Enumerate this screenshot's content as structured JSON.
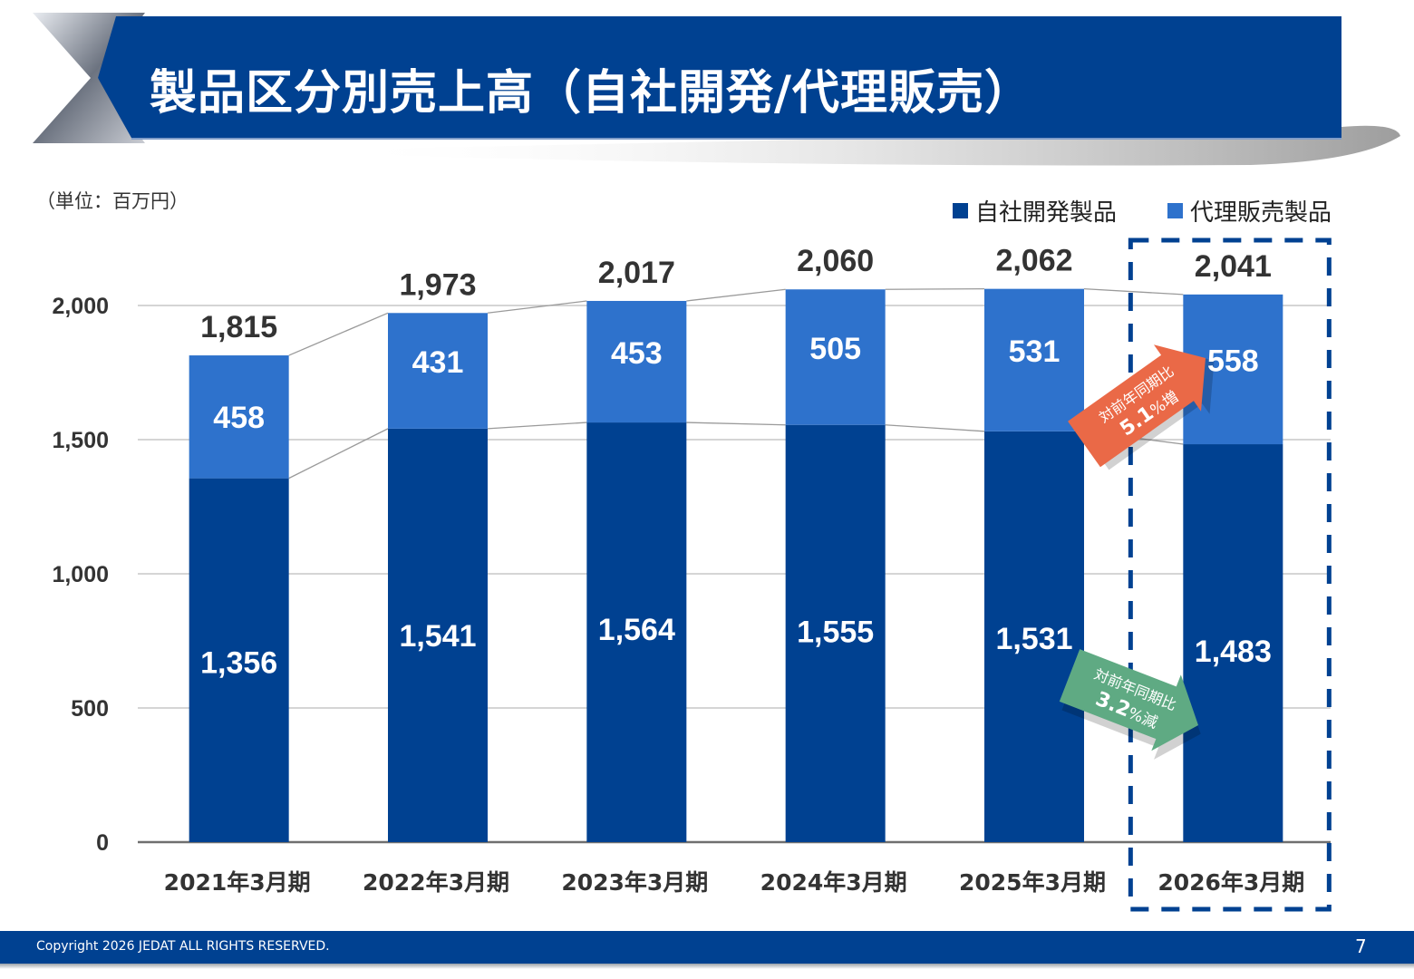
{
  "title": "製品区分別売上高（自社開発/代理販売）",
  "unit_label": "（単位：百万円）",
  "colors": {
    "primary": "#004191",
    "secondary": "#2E72CC",
    "increase": "#EA6947",
    "decrease": "#5FAA83"
  },
  "chart_data": {
    "type": "bar",
    "stacked": true,
    "categories": [
      "2021年3月期",
      "2022年3月期",
      "2023年3月期",
      "2024年3月期",
      "2025年3月期",
      "2026年3月期"
    ],
    "series": [
      {
        "name": "自社開発製品",
        "values": [
          1356,
          1541,
          1564,
          1555,
          1531,
          1483
        ]
      },
      {
        "name": "代理販売製品",
        "values": [
          458,
          431,
          453,
          505,
          531,
          558
        ]
      }
    ],
    "totals": [
      "1,815",
      "1,973",
      "2,017",
      "2,060",
      "2,062",
      "2,041"
    ],
    "ylim": [
      0,
      2000
    ],
    "yticks": [
      "0",
      "500",
      "1,000",
      "1,500",
      "2,000"
    ],
    "ytick_values": [
      0,
      500,
      1000,
      1500,
      2000
    ],
    "grid": true,
    "legend_position": "top-right",
    "highlight_category": "2026年3月期"
  },
  "callouts": {
    "agency": {
      "line1": "対前年同期比",
      "value": "5.1",
      "suffix": "%増"
    },
    "inhouse": {
      "line1": "対前年同期比",
      "value": "3.2",
      "suffix": "%減"
    }
  },
  "footer": {
    "copyright": "Copyright 2026 JEDAT ALL RIGHTS RESERVED.",
    "page": "7"
  }
}
